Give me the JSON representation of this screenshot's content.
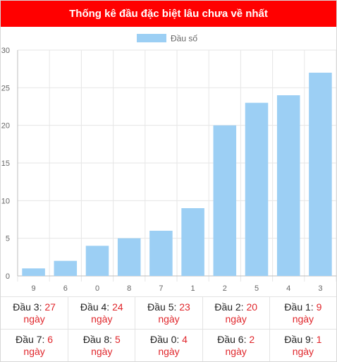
{
  "header": {
    "title": "Thống kê đầu đặc biệt lâu chưa về nhất"
  },
  "chart_data": {
    "type": "bar",
    "categories": [
      "9",
      "6",
      "0",
      "8",
      "7",
      "1",
      "2",
      "5",
      "4",
      "3"
    ],
    "series": [
      {
        "name": "Đầu số",
        "values": [
          1,
          2,
          4,
          5,
          6,
          9,
          20,
          23,
          24,
          27
        ],
        "color": "#9ccff4"
      }
    ],
    "ylim": [
      0,
      30
    ],
    "yticks": [
      0,
      5,
      10,
      15,
      20,
      25,
      30
    ],
    "grid": true,
    "legend": "top-center"
  },
  "stats": [
    {
      "label": "Đầu 3:",
      "value": "27",
      "unit": "ngày"
    },
    {
      "label": "Đầu 4:",
      "value": "24",
      "unit": "ngày"
    },
    {
      "label": "Đầu 5:",
      "value": "23",
      "unit": "ngày"
    },
    {
      "label": "Đầu 2:",
      "value": "20",
      "unit": "ngày"
    },
    {
      "label": "Đầu 1:",
      "value": "9",
      "unit": "ngày"
    },
    {
      "label": "Đầu 7:",
      "value": "6",
      "unit": "ngày"
    },
    {
      "label": "Đầu 8:",
      "value": "5",
      "unit": "ngày"
    },
    {
      "label": "Đầu 0:",
      "value": "4",
      "unit": "ngày"
    },
    {
      "label": "Đầu 6:",
      "value": "2",
      "unit": "ngày"
    },
    {
      "label": "Đầu 9:",
      "value": "1",
      "unit": "ngày"
    }
  ]
}
